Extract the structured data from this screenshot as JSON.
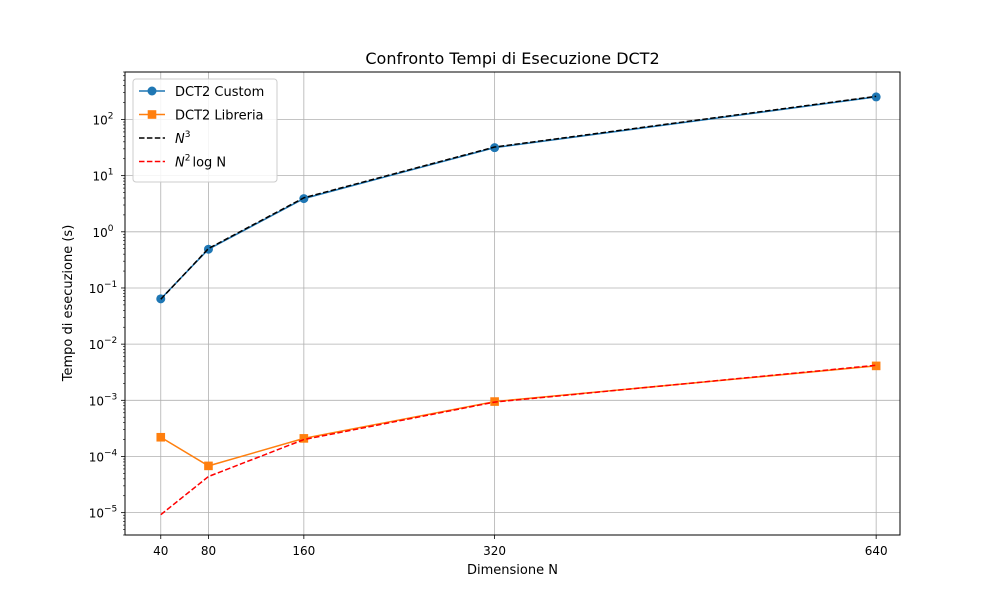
{
  "chart_data": {
    "type": "line",
    "title": "Confronto Tempi di Esecuzione DCT2",
    "xlabel": "Dimensione N",
    "ylabel": "Tempo di esecuzione (s)",
    "x": [
      40,
      80,
      160,
      320,
      640
    ],
    "xticks": [
      "40",
      "80",
      "160",
      "320",
      "640"
    ],
    "xlim": [
      10,
      660
    ],
    "yscale": "log",
    "ylim": [
      4e-06,
      700
    ],
    "ytick_exponents": [
      "-5",
      "-4",
      "-3",
      "-2",
      "-1",
      "0",
      "1",
      "2"
    ],
    "grid": true,
    "legend_position": "top-left",
    "series": [
      {
        "name": "DCT2 Custom",
        "values": [
          0.064,
          0.49,
          3.9,
          31.5,
          252
        ],
        "color": "#1f77b4",
        "marker": "circle",
        "linestyle": "solid"
      },
      {
        "name": "DCT2 Libreria",
        "values": [
          0.00022,
          6.8e-05,
          0.00021,
          0.00095,
          0.0041
        ],
        "color": "#ff7f0e",
        "marker": "square",
        "linestyle": "solid"
      },
      {
        "name": "N",
        "name_sup": "3",
        "values": [
          0.063,
          0.504,
          4.03,
          32.3,
          258
        ],
        "color": "#000000",
        "marker": "none",
        "linestyle": "dashed"
      },
      {
        "name": "N",
        "name_sup": "2",
        "name_suffix": "log N",
        "values": [
          9.2e-06,
          4.4e-05,
          0.0002,
          0.00093,
          0.0042
        ],
        "color": "#ff0000",
        "marker": "none",
        "linestyle": "dashed"
      }
    ]
  }
}
